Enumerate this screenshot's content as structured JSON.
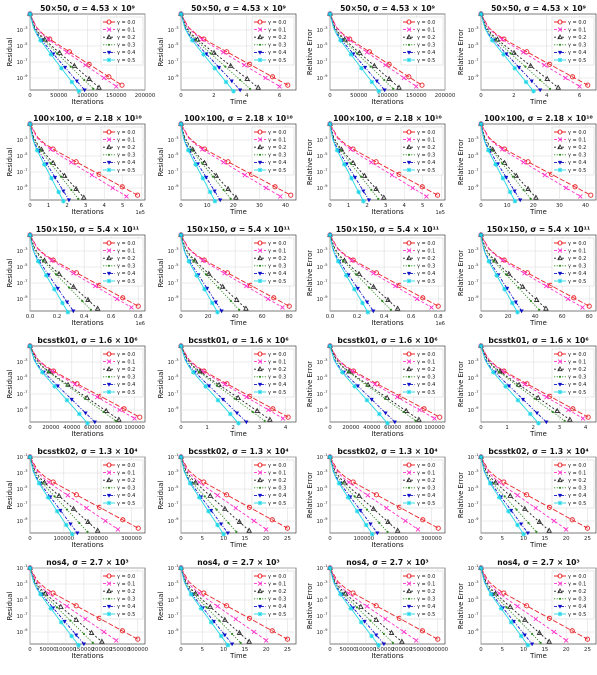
{
  "legend_labels": [
    "γ = 0.0",
    "γ = 0.1",
    "γ = 0.2",
    "γ = 0.3",
    "γ = 0.4",
    "γ = 0.5"
  ],
  "series_colors": [
    "#e8242a",
    "#ff33cc",
    "#222222",
    "#2e8b22",
    "#1010c8",
    "#22d8e8"
  ],
  "column_labels": [
    {
      "xlabel": "Iterations",
      "ylabel": "Residual"
    },
    {
      "xlabel": "Time",
      "ylabel": "Residual"
    },
    {
      "xlabel": "Iterations",
      "ylabel": "Relative Error"
    },
    {
      "xlabel": "Time",
      "ylabel": "Relative Error"
    }
  ],
  "rows": [
    {
      "title": "50×50, σ = 4.53 × 10⁹",
      "iter_ticks": [
        "0",
        "50000",
        "100000",
        "150000",
        "200000"
      ],
      "iter_max": 200000,
      "iter_offset": "",
      "iter_end": [
        160000,
        150000,
        120000,
        110000,
        95000,
        85000
      ],
      "time_ticks": [
        "0",
        "2",
        "4",
        "6"
      ],
      "time_max": 7,
      "time_end": [
        6.5,
        6.0,
        4.7,
        4.2,
        3.6,
        3.2
      ],
      "ytick_exps": [
        "-3",
        "-5",
        "-7",
        "-9"
      ]
    },
    {
      "title": "100×100, σ = 2.18 × 10¹⁰",
      "iter_ticks": [
        "0",
        "1",
        "2",
        "3",
        "4",
        "5",
        "6"
      ],
      "iter_max": 6.2,
      "iter_offset": "1e5",
      "iter_end": [
        5.8,
        5.2,
        2.9,
        2.6,
        2.1,
        1.8
      ],
      "time_ticks": [
        "0",
        "10",
        "20",
        "30",
        "40"
      ],
      "time_max": 44,
      "time_end": [
        42,
        38,
        21,
        19,
        15,
        13
      ],
      "ytick_exps": [
        "-3",
        "-5",
        "-7",
        "-9"
      ]
    },
    {
      "title": "150×150, σ = 5.4 × 10¹¹",
      "iter_ticks": [
        "0.0",
        "0.2",
        "0.4",
        "0.6",
        "0.8"
      ],
      "iter_max": 0.85,
      "iter_offset": "1e6",
      "iter_end": [
        0.8,
        0.75,
        0.5,
        0.45,
        0.32,
        0.28
      ],
      "time_ticks": [
        "0",
        "20",
        "40",
        "60",
        "80"
      ],
      "time_max": 85,
      "time_end": [
        80,
        75,
        48,
        43,
        30,
        27
      ],
      "ytick_exps": [
        "-3",
        "-5",
        "-7",
        "-9"
      ]
    },
    {
      "title": "bcsstk01, σ = 1.6 × 10⁶",
      "iter_ticks": [
        "0",
        "20000",
        "40000",
        "60000",
        "80000",
        "100000"
      ],
      "iter_max": 110000,
      "iter_offset": "",
      "iter_end": [
        105000,
        100000,
        85000,
        82000,
        62000,
        55000
      ],
      "time_ticks": [
        "0",
        "1",
        "2",
        "3",
        "4"
      ],
      "time_max": 4.4,
      "time_end": [
        4.1,
        3.9,
        3.4,
        3.2,
        2.5,
        2.2
      ],
      "ytick_exps": [
        "-3",
        "-5",
        "-7",
        "-9"
      ]
    },
    {
      "title": "bcsstk02, σ = 1.3 × 10⁴",
      "iter_ticks": [
        "0",
        "100000",
        "200000",
        "300000"
      ],
      "iter_max": 340000,
      "iter_offset": "",
      "iter_end": [
        320000,
        260000,
        200000,
        170000,
        140000,
        125000
      ],
      "time_ticks": [
        "0",
        "5",
        "10",
        "15",
        "20",
        "25"
      ],
      "time_max": 27,
      "time_end": [
        25,
        20,
        16,
        13,
        11,
        10
      ],
      "ytick_exps": [
        "-1",
        "-3",
        "-5",
        "-7",
        "-9"
      ]
    },
    {
      "title": "nos4, σ = 2.7 × 10³",
      "iter_ticks": [
        "0",
        "50000",
        "100000",
        "150000",
        "200000",
        "250000",
        "300000"
      ],
      "iter_max": 320000,
      "iter_offset": "",
      "iter_end": [
        300000,
        240000,
        200000,
        175000,
        150000,
        135000
      ],
      "time_ticks": [
        "0",
        "5",
        "10",
        "15",
        "20",
        "25"
      ],
      "time_max": 27,
      "time_end": [
        25,
        20,
        16,
        14,
        12,
        11
      ],
      "ytick_exps": [
        "-1",
        "-3",
        "-5",
        "-7",
        "-9"
      ]
    }
  ],
  "chart_data": {
    "type": "line",
    "layout": "6 rows × 4 columns of small multiples",
    "yscale": "log",
    "grid": true,
    "legend_placement": "top-right",
    "legend": [
      "γ = 0.0",
      "γ = 0.1",
      "γ = 0.2",
      "γ = 0.3",
      "γ = 0.4",
      "γ = 0.5"
    ],
    "note": "Each panel: every series starts at ~1e-1 and decays; end values in x data units listed per row (iter_end / time_end)."
  }
}
